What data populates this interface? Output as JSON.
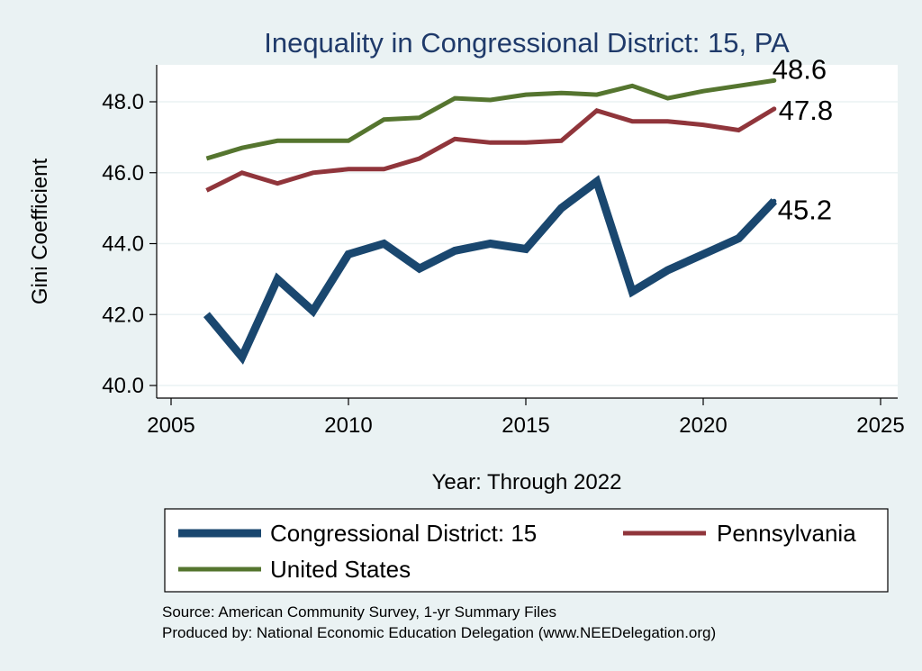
{
  "chart_data": {
    "type": "line",
    "title": "Inequality in Congressional District:  15, PA",
    "xlabel": "Year: Through 2022",
    "ylabel": "Gini Coefficient",
    "xlim": [
      2004.5,
      2025.5
    ],
    "ylim": [
      39.6,
      49.0
    ],
    "x_ticks": [
      2005,
      2010,
      2015,
      2020,
      2025
    ],
    "x_tick_labels": [
      "2005",
      "2010",
      "2015",
      "2020",
      "2025"
    ],
    "y_ticks": [
      40,
      42,
      44,
      46,
      48
    ],
    "y_tick_labels": [
      "40.0",
      "42.0",
      "44.0",
      "46.0",
      "48.0"
    ],
    "grid": true,
    "legend_position": "bottom",
    "series": [
      {
        "name": "Congressional District:  15",
        "color": "#1a476f",
        "line_width": "thick",
        "end_label": "45.2",
        "x": [
          2006,
          2007,
          2008,
          2009,
          2010,
          2011,
          2012,
          2013,
          2014,
          2015,
          2016,
          2017,
          2018,
          2019,
          2020,
          2021,
          2022
        ],
        "values": [
          42.0,
          40.8,
          43.0,
          42.1,
          43.7,
          44.0,
          43.3,
          43.8,
          44.0,
          43.85,
          45.0,
          45.75,
          42.65,
          43.25,
          43.7,
          44.15,
          45.2
        ]
      },
      {
        "name": "Pennsylvania",
        "color": "#90353b",
        "line_width": "medium",
        "end_label": "47.8",
        "x": [
          2006,
          2007,
          2008,
          2009,
          2010,
          2011,
          2012,
          2013,
          2014,
          2015,
          2016,
          2017,
          2018,
          2019,
          2020,
          2021,
          2022
        ],
        "values": [
          45.5,
          46.0,
          45.7,
          46.0,
          46.1,
          46.1,
          46.4,
          46.95,
          46.85,
          46.85,
          46.9,
          47.75,
          47.45,
          47.45,
          47.35,
          47.2,
          47.8
        ]
      },
      {
        "name": "United States",
        "color": "#55752f",
        "line_width": "medium",
        "end_label": "48.6",
        "x": [
          2006,
          2007,
          2008,
          2009,
          2010,
          2011,
          2012,
          2013,
          2014,
          2015,
          2016,
          2017,
          2018,
          2019,
          2020,
          2021,
          2022
        ],
        "values": [
          46.4,
          46.7,
          46.9,
          46.9,
          46.9,
          47.5,
          47.55,
          48.1,
          48.05,
          48.2,
          48.25,
          48.2,
          48.45,
          48.1,
          48.3,
          48.45,
          48.6
        ]
      }
    ]
  },
  "notes": {
    "source": "Source: American Community Survey, 1-yr Summary Files",
    "produced_by": "Produced by: National Economic Education Delegation (www.NEEDelegation.org)"
  }
}
